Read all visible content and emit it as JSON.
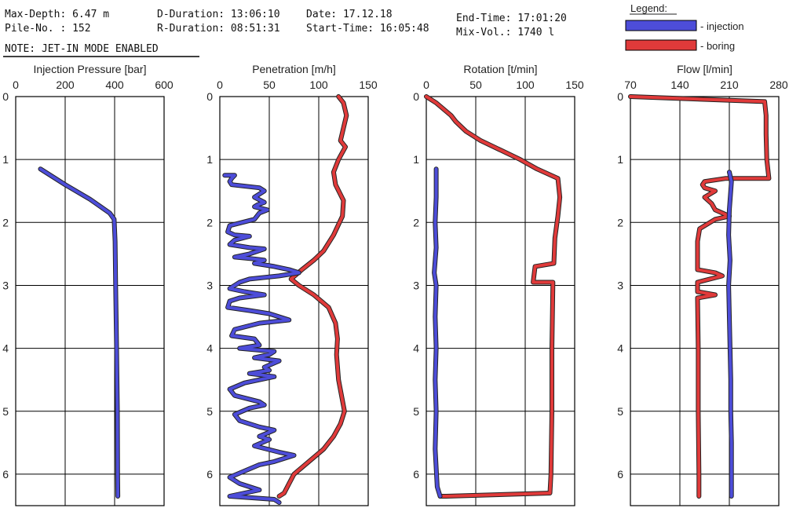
{
  "header": {
    "max_depth": "Max-Depth: 6.47 m",
    "pile_no": "Pile-No. : 152",
    "note": "NOTE: JET-IN MODE ENABLED",
    "d_duration": "D-Duration: 13:06:10",
    "r_duration": "R-Duration: 08:51:31",
    "date": "Date: 17.12.18",
    "start_time": "Start-Time: 16:05:48",
    "end_time": "End-Time: 17:01:20",
    "mix_vol": "Mix-Vol.: 1740 l"
  },
  "legend": {
    "title": "Legend:",
    "items": [
      {
        "label": "- injection",
        "color": "#4d4dd9"
      },
      {
        "label": "- boring",
        "color": "#e03a3a"
      }
    ]
  },
  "colors": {
    "injection": "#4d4dd9",
    "boring": "#e03a3a",
    "outline": "#222222"
  },
  "chart_data": [
    {
      "type": "line",
      "title": "Injection Pressure [bar]",
      "xlim": [
        0,
        600
      ],
      "xticks": [
        0,
        200,
        400,
        600
      ],
      "ylim": [
        0,
        6.5
      ],
      "yticks": [
        0,
        1,
        2,
        3,
        4,
        5,
        6
      ],
      "grid": true,
      "series": [
        {
          "name": "injection",
          "color": "#4d4dd9",
          "points": [
            [
              100,
              1.15
            ],
            [
              200,
              1.4
            ],
            [
              300,
              1.63
            ],
            [
              380,
              1.85
            ],
            [
              398,
              1.95
            ],
            [
              402,
              2.3
            ],
            [
              404,
              3.0
            ],
            [
              408,
              4.0
            ],
            [
              411,
              5.0
            ],
            [
              412,
              6.0
            ],
            [
              413,
              6.35
            ]
          ]
        }
      ]
    },
    {
      "type": "line",
      "title": "Penetration [m/h]",
      "xlim": [
        0,
        150
      ],
      "xticks": [
        0,
        50,
        100,
        150
      ],
      "ylim": [
        0,
        6.5
      ],
      "yticks": [
        0,
        1,
        2,
        3,
        4,
        5,
        6
      ],
      "grid": true,
      "series": [
        {
          "name": "injection",
          "color": "#4d4dd9",
          "points": [
            [
              5,
              1.25
            ],
            [
              15,
              1.25
            ],
            [
              12,
              1.3
            ],
            [
              10,
              1.35
            ],
            [
              12,
              1.4
            ],
            [
              40,
              1.45
            ],
            [
              45,
              1.5
            ],
            [
              40,
              1.55
            ],
            [
              35,
              1.6
            ],
            [
              45,
              1.68
            ],
            [
              38,
              1.72
            ],
            [
              35,
              1.75
            ],
            [
              48,
              1.8
            ],
            [
              40,
              1.85
            ],
            [
              35,
              1.95
            ],
            [
              10,
              2.05
            ],
            [
              8,
              2.15
            ],
            [
              15,
              2.2
            ],
            [
              30,
              2.22
            ],
            [
              15,
              2.28
            ],
            [
              10,
              2.35
            ],
            [
              30,
              2.4
            ],
            [
              45,
              2.42
            ],
            [
              30,
              2.5
            ],
            [
              15,
              2.55
            ],
            [
              35,
              2.58
            ],
            [
              45,
              2.6
            ],
            [
              35,
              2.65
            ],
            [
              55,
              2.7
            ],
            [
              70,
              2.75
            ],
            [
              80,
              2.8
            ],
            [
              60,
              2.85
            ],
            [
              30,
              2.9
            ],
            [
              20,
              2.95
            ],
            [
              10,
              3.05
            ],
            [
              25,
              3.1
            ],
            [
              45,
              3.15
            ],
            [
              20,
              3.2
            ],
            [
              10,
              3.25
            ],
            [
              8,
              3.35
            ],
            [
              30,
              3.4
            ],
            [
              50,
              3.45
            ],
            [
              70,
              3.55
            ],
            [
              40,
              3.6
            ],
            [
              15,
              3.7
            ],
            [
              12,
              3.8
            ],
            [
              35,
              3.85
            ],
            [
              40,
              3.95
            ],
            [
              20,
              4.0
            ],
            [
              55,
              4.05
            ],
            [
              50,
              4.1
            ],
            [
              35,
              4.15
            ],
            [
              60,
              4.2
            ],
            [
              45,
              4.3
            ],
            [
              50,
              4.35
            ],
            [
              30,
              4.4
            ],
            [
              55,
              4.45
            ],
            [
              40,
              4.5
            ],
            [
              25,
              4.55
            ],
            [
              10,
              4.65
            ],
            [
              15,
              4.75
            ],
            [
              40,
              4.85
            ],
            [
              45,
              4.9
            ],
            [
              30,
              4.95
            ],
            [
              15,
              5.05
            ],
            [
              20,
              5.15
            ],
            [
              40,
              5.25
            ],
            [
              55,
              5.3
            ],
            [
              40,
              5.4
            ],
            [
              50,
              5.45
            ],
            [
              35,
              5.55
            ],
            [
              60,
              5.65
            ],
            [
              75,
              5.7
            ],
            [
              55,
              5.8
            ],
            [
              40,
              5.85
            ],
            [
              25,
              5.95
            ],
            [
              10,
              6.05
            ],
            [
              20,
              6.15
            ],
            [
              40,
              6.25
            ],
            [
              25,
              6.3
            ],
            [
              10,
              6.35
            ],
            [
              55,
              6.4
            ],
            [
              60,
              6.45
            ]
          ]
        },
        {
          "name": "boring",
          "color": "#e03a3a",
          "points": [
            [
              120,
              0.0
            ],
            [
              125,
              0.1
            ],
            [
              128,
              0.3
            ],
            [
              125,
              0.5
            ],
            [
              122,
              0.7
            ],
            [
              127,
              0.8
            ],
            [
              120,
              1.0
            ],
            [
              115,
              1.2
            ],
            [
              117,
              1.4
            ],
            [
              125,
              1.65
            ],
            [
              124,
              1.9
            ],
            [
              115,
              2.2
            ],
            [
              105,
              2.45
            ],
            [
              95,
              2.6
            ],
            [
              83,
              2.75
            ],
            [
              72,
              2.9
            ],
            [
              80,
              3.0
            ],
            [
              95,
              3.15
            ],
            [
              110,
              3.35
            ],
            [
              117,
              3.6
            ],
            [
              119,
              3.85
            ],
            [
              118,
              4.1
            ],
            [
              120,
              4.5
            ],
            [
              126,
              5.0
            ],
            [
              122,
              5.2
            ],
            [
              115,
              5.4
            ],
            [
              105,
              5.6
            ],
            [
              90,
              5.8
            ],
            [
              75,
              6.0
            ],
            [
              70,
              6.15
            ],
            [
              65,
              6.3
            ],
            [
              60,
              6.35
            ]
          ]
        }
      ]
    },
    {
      "type": "line",
      "title": "Rotation [t/min]",
      "xlim": [
        0,
        150
      ],
      "xticks": [
        0,
        50,
        100,
        150
      ],
      "ylim": [
        0,
        6.5
      ],
      "yticks": [
        0,
        1,
        2,
        3,
        4,
        5,
        6
      ],
      "grid": true,
      "series": [
        {
          "name": "injection",
          "color": "#4d4dd9",
          "points": [
            [
              10,
              1.15
            ],
            [
              10,
              1.6
            ],
            [
              9,
              2.0
            ],
            [
              10,
              2.4
            ],
            [
              8,
              2.8
            ],
            [
              10,
              3.0
            ],
            [
              9,
              3.5
            ],
            [
              10,
              4.0
            ],
            [
              9,
              4.5
            ],
            [
              10,
              5.0
            ],
            [
              9,
              5.6
            ],
            [
              11,
              6.2
            ],
            [
              14,
              6.35
            ]
          ]
        },
        {
          "name": "boring",
          "color": "#e03a3a",
          "points": [
            [
              0,
              0.0
            ],
            [
              10,
              0.1
            ],
            [
              25,
              0.3
            ],
            [
              30,
              0.4
            ],
            [
              40,
              0.55
            ],
            [
              55,
              0.7
            ],
            [
              75,
              0.85
            ],
            [
              95,
              1.0
            ],
            [
              112,
              1.15
            ],
            [
              133,
              1.3
            ],
            [
              135,
              1.6
            ],
            [
              133,
              1.9
            ],
            [
              130,
              2.25
            ],
            [
              129,
              2.65
            ],
            [
              110,
              2.7
            ],
            [
              108,
              2.95
            ],
            [
              128,
              2.95
            ],
            [
              127,
              4.0
            ],
            [
              127,
              5.0
            ],
            [
              126,
              6.0
            ],
            [
              125,
              6.3
            ],
            [
              20,
              6.35
            ],
            [
              14,
              6.35
            ]
          ]
        }
      ]
    },
    {
      "type": "line",
      "title": "Flow [l/min]",
      "xlim": [
        70,
        280
      ],
      "xticks": [
        70,
        140,
        210,
        280
      ],
      "ylim": [
        0,
        6.5
      ],
      "yticks": [
        0,
        1,
        2,
        3,
        4,
        5,
        6
      ],
      "grid": true,
      "series": [
        {
          "name": "injection",
          "color": "#4d4dd9",
          "points": [
            [
              210,
              1.2
            ],
            [
              213,
              1.35
            ],
            [
              210,
              1.8
            ],
            [
              209,
              2.2
            ],
            [
              211,
              2.6
            ],
            [
              209,
              3.0
            ],
            [
              210,
              3.5
            ],
            [
              211,
              4.0
            ],
            [
              212,
              4.5
            ],
            [
              212,
              5.0
            ],
            [
              213,
              5.5
            ],
            [
              213,
              6.0
            ],
            [
              213,
              6.35
            ]
          ]
        },
        {
          "name": "boring",
          "color": "#e03a3a",
          "points": [
            [
              70,
              0.0
            ],
            [
              260,
              0.08
            ],
            [
              262,
              0.3
            ],
            [
              262,
              0.6
            ],
            [
              263,
              1.0
            ],
            [
              266,
              1.3
            ],
            [
              205,
              1.3
            ],
            [
              175,
              1.35
            ],
            [
              172,
              1.4
            ],
            [
              175,
              1.45
            ],
            [
              190,
              1.5
            ],
            [
              175,
              1.6
            ],
            [
              185,
              1.7
            ],
            [
              190,
              1.8
            ],
            [
              200,
              1.85
            ],
            [
              210,
              1.9
            ],
            [
              190,
              1.95
            ],
            [
              168,
              2.1
            ],
            [
              165,
              2.3
            ],
            [
              165,
              2.5
            ],
            [
              165,
              2.75
            ],
            [
              190,
              2.8
            ],
            [
              200,
              2.85
            ],
            [
              165,
              2.95
            ],
            [
              165,
              3.1
            ],
            [
              190,
              3.15
            ],
            [
              165,
              3.2
            ],
            [
              166,
              4.0
            ],
            [
              166,
              5.0
            ],
            [
              167,
              6.0
            ],
            [
              167,
              6.35
            ]
          ]
        }
      ]
    }
  ]
}
